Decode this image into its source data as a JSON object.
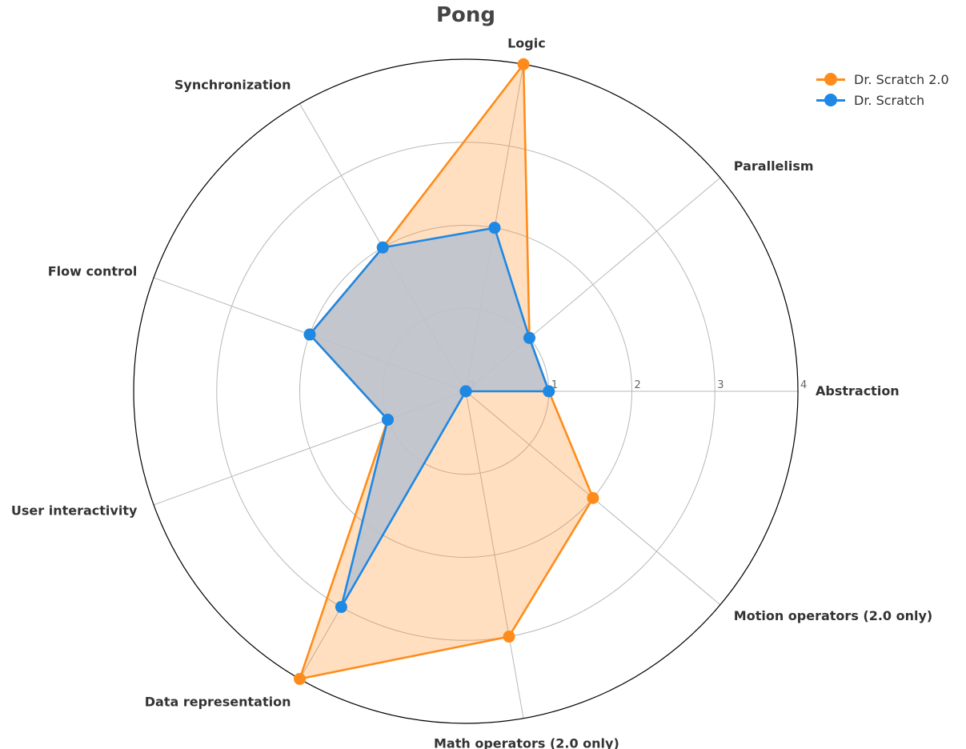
{
  "chart_data": {
    "type": "radar",
    "title": "Pong",
    "categories": [
      "Abstraction",
      "Parallelism",
      "Logic",
      "Synchronization",
      "Flow control",
      "User interactivity",
      "Data representation",
      "Math operators (2.0 only)",
      "Motion operators (2.0 only)"
    ],
    "rlim": [
      0,
      4
    ],
    "rticks": [
      "0",
      "1",
      "2",
      "3",
      "4"
    ],
    "grid": true,
    "legend_position": "top-right",
    "series": [
      {
        "name": "Dr. Scratch 2.0",
        "values": [
          1,
          1,
          4,
          2,
          2,
          1,
          4,
          3,
          2
        ],
        "color": "#FF8C1A"
      },
      {
        "name": "Dr. Scratch",
        "values": [
          1,
          1,
          2,
          2,
          2,
          1,
          3,
          0,
          0
        ],
        "color": "#1E88E5"
      }
    ],
    "blend_fill": "#BDC3CD"
  }
}
